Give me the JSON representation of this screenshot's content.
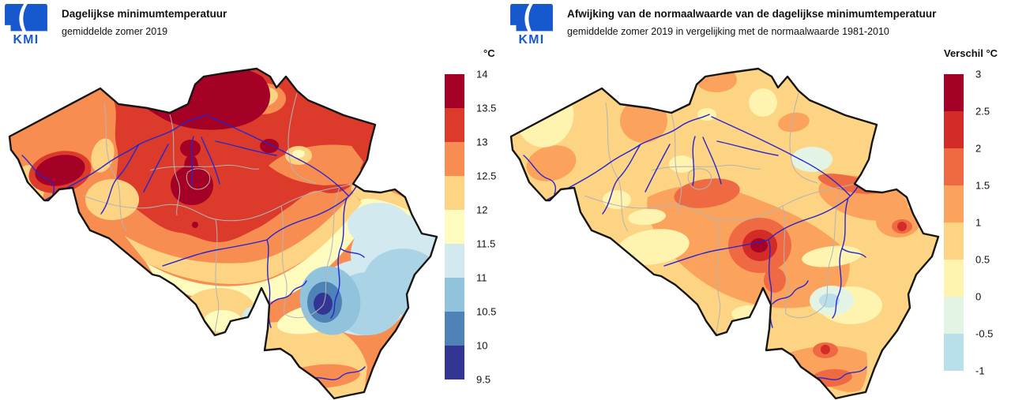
{
  "panels": [
    {
      "logo": "KMI",
      "title": "Dagelijkse minimumtemperatuur",
      "subtitle": "gemiddelde zomer 2019",
      "legend": {
        "title": "°C",
        "ticks": [
          "14",
          "13.5",
          "13",
          "12.5",
          "12",
          "11.5",
          "11",
          "10.5",
          "10",
          "9.5"
        ],
        "colors": [
          "#a50026",
          "#dc3b2c",
          "#f88d52",
          "#fdd384",
          "#fefbbf",
          "#d2e9f0",
          "#91c3dd",
          "#4f83b8",
          "#333592"
        ]
      }
    },
    {
      "logo": "KMI",
      "title": "Afwijking van de normaalwaarde van de dagelijkse minimumtemperatuur",
      "subtitle": "gemiddelde zomer 2019 in vergelijking met de normaalwaarde 1981-2010",
      "legend": {
        "title": "Verschil °C",
        "ticks": [
          "3",
          "2.5",
          "2",
          "1.5",
          "1",
          "0.5",
          "0",
          "-0.5",
          "-1"
        ],
        "colors": [
          "#a50026",
          "#d32b27",
          "#ef6a43",
          "#fba35d",
          "#fdd384",
          "#fef3af",
          "#e3f4e4",
          "#b8dfea"
        ]
      }
    }
  ],
  "map": {
    "country": "België",
    "border_color": "#151515",
    "province_border_color": "#b3b3b3",
    "river_color": "#2626cf",
    "logo_color": "#1758cf"
  }
}
